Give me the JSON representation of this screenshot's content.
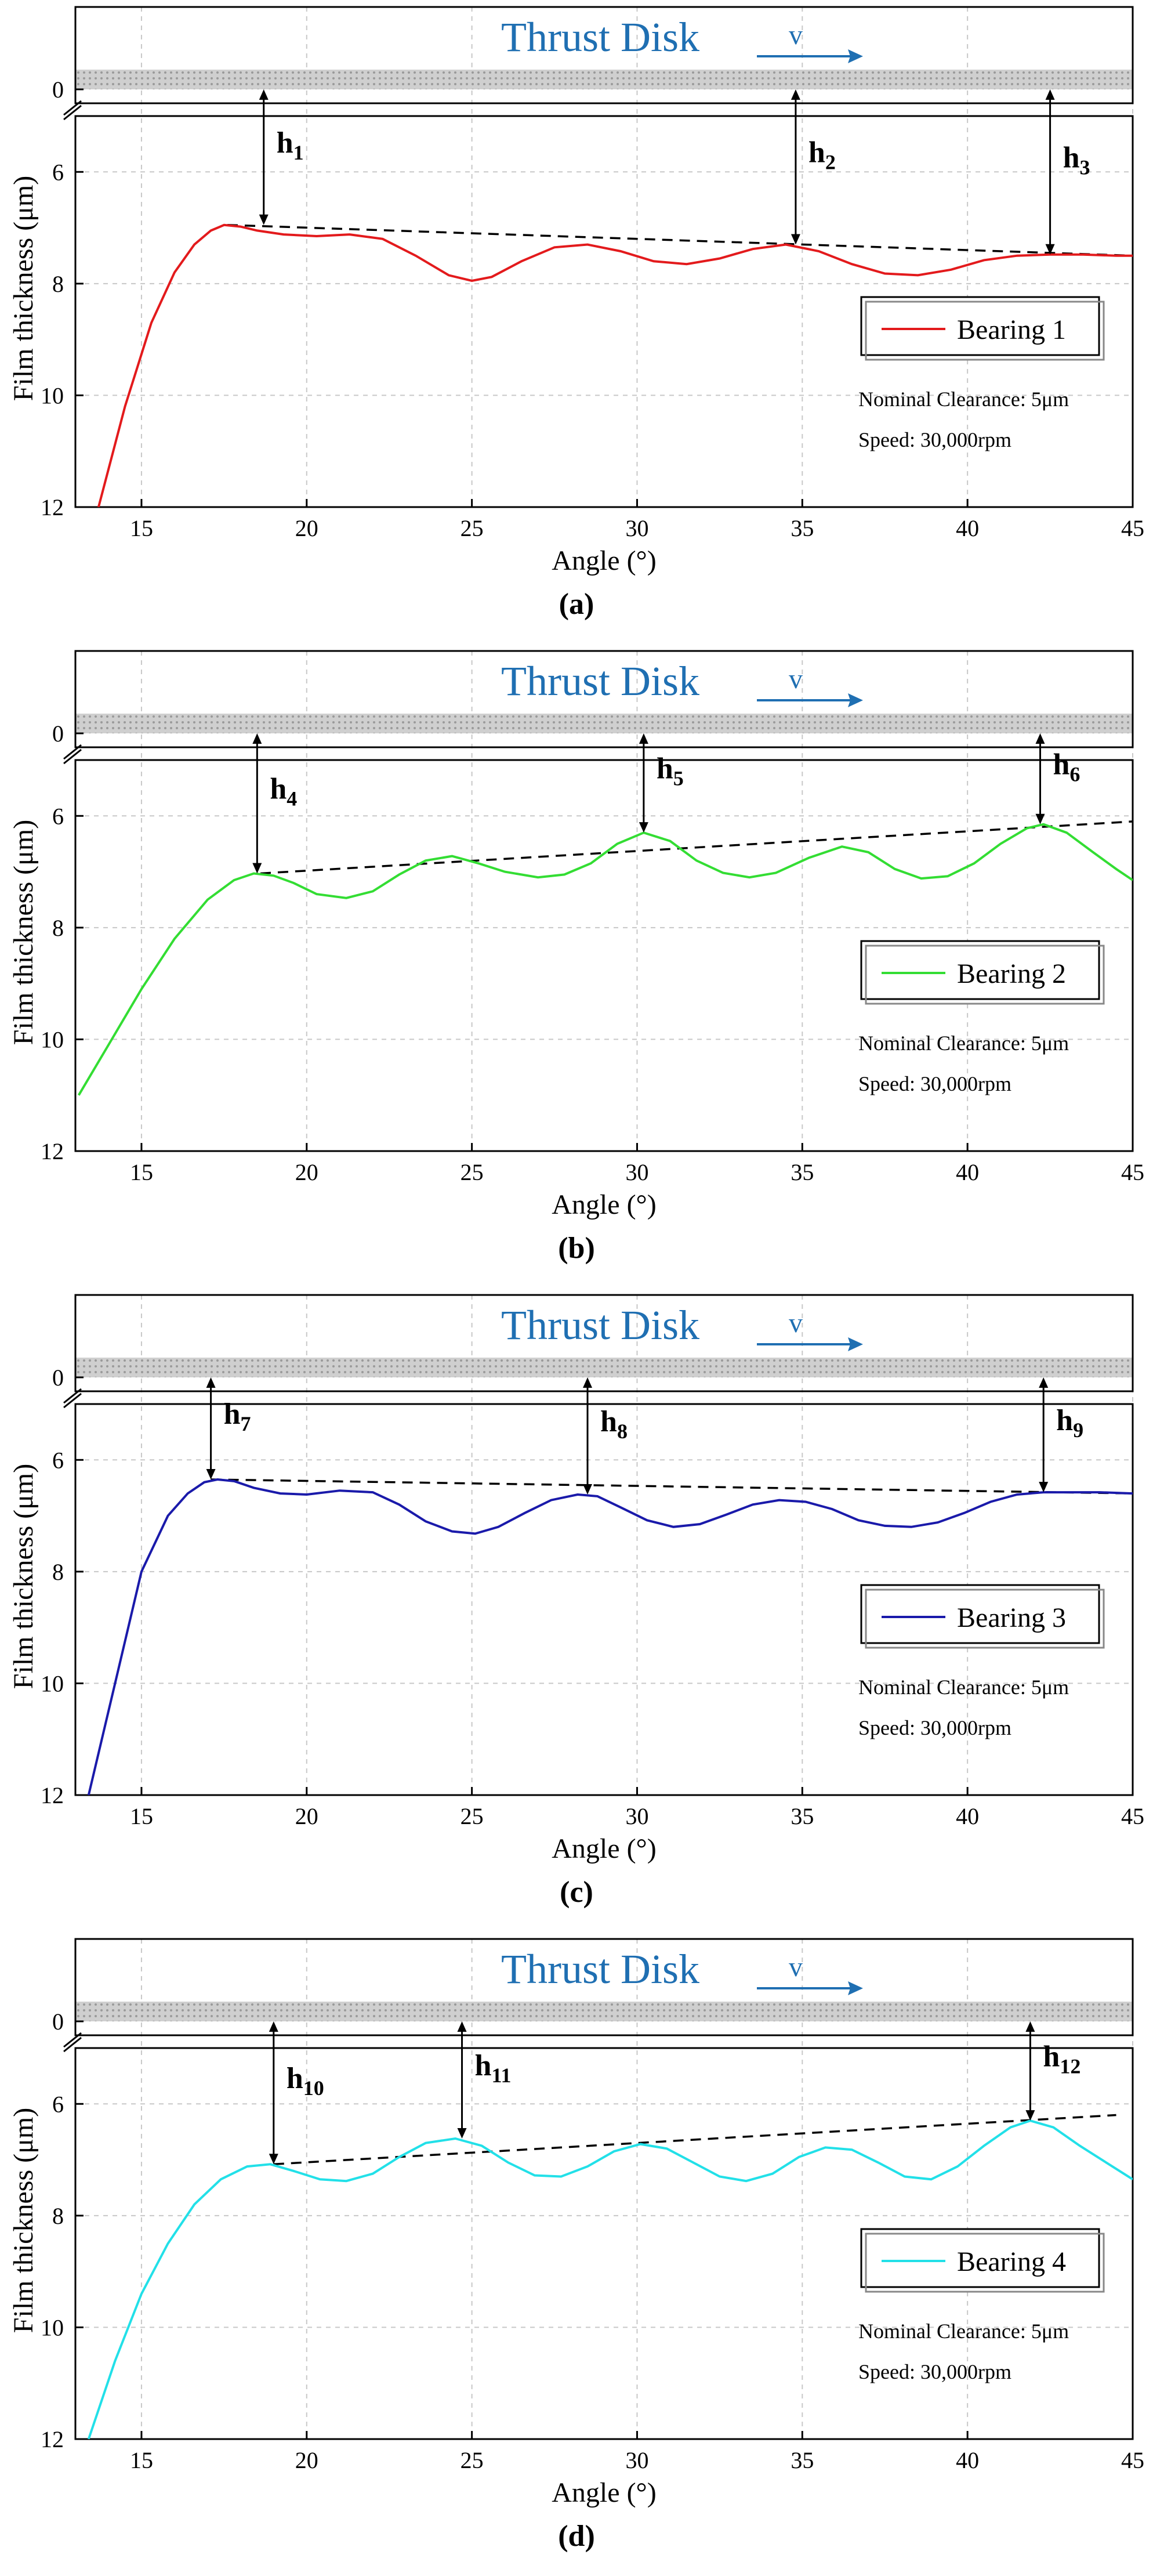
{
  "colors": {
    "bearing1": "#e31a1c",
    "bearing2": "#33dd33",
    "bearing3": "#1a1aaa",
    "bearing4": "#22e0e8",
    "disk_text": "#1f6fb2",
    "dashed": "#000000"
  },
  "chart_data": [
    {
      "type": "line",
      "caption": "(a)",
      "thrust_disk_label": "Thrust Disk",
      "velocity_label": "v",
      "xlabel": "Angle (°)",
      "ylabel": "Film thickness (μm)",
      "xlim": [
        13,
        45
      ],
      "ylim": [
        12,
        0
      ],
      "xticks": [
        "15",
        "20",
        "25",
        "30",
        "35",
        "40",
        "45"
      ],
      "yticks": [
        "0",
        "6",
        "8",
        "10",
        "12"
      ],
      "series": [
        {
          "name": "Bearing 1",
          "color": "#e31a1c",
          "x": [
            13.7,
            14.5,
            15.3,
            16.0,
            16.6,
            17.1,
            17.5,
            18.0,
            18.5,
            19.3,
            20.3,
            21.3,
            22.3,
            23.3,
            24.3,
            25.0,
            25.6,
            26.5,
            27.5,
            28.5,
            29.5,
            30.5,
            31.5,
            32.5,
            33.5,
            34.5,
            35.5,
            36.5,
            37.5,
            38.5,
            39.5,
            40.5,
            41.5,
            42.5,
            43.5,
            44.5,
            45.0
          ],
          "y": [
            12.0,
            10.2,
            8.7,
            7.8,
            7.3,
            7.05,
            6.95,
            6.98,
            7.05,
            7.12,
            7.15,
            7.12,
            7.2,
            7.5,
            7.85,
            7.95,
            7.88,
            7.6,
            7.35,
            7.3,
            7.42,
            7.6,
            7.65,
            7.55,
            7.38,
            7.3,
            7.42,
            7.65,
            7.82,
            7.85,
            7.75,
            7.58,
            7.5,
            7.48,
            7.48,
            7.5,
            7.5
          ]
        }
      ],
      "envelope": {
        "x": [
          17.6,
          45.0
        ],
        "y": [
          6.95,
          7.5
        ]
      },
      "clearance_markers": [
        {
          "label": "h",
          "sub": "1",
          "x": 18.7,
          "y": 6.95
        },
        {
          "label": "h",
          "sub": "2",
          "x": 34.8,
          "y": 7.3
        },
        {
          "label": "h",
          "sub": "3",
          "x": 42.5,
          "y": 7.48
        }
      ],
      "legend": "Bearing 1",
      "notes": [
        "Nominal Clearance: 5μm",
        "Speed: 30,000rpm"
      ]
    },
    {
      "type": "line",
      "caption": "(b)",
      "thrust_disk_label": "Thrust Disk",
      "velocity_label": "v",
      "xlabel": "Angle (°)",
      "ylabel": "Film thickness (μm)",
      "xlim": [
        13,
        45
      ],
      "ylim": [
        12,
        0
      ],
      "xticks": [
        "15",
        "20",
        "25",
        "30",
        "35",
        "40",
        "45"
      ],
      "yticks": [
        "0",
        "6",
        "8",
        "10",
        "12"
      ],
      "series": [
        {
          "name": "Bearing 2",
          "color": "#33dd33",
          "x": [
            13.1,
            14.0,
            15.0,
            16.0,
            17.0,
            17.8,
            18.4,
            19.0,
            19.6,
            20.3,
            21.2,
            22.0,
            22.8,
            23.6,
            24.4,
            25.2,
            26.0,
            27.0,
            27.8,
            28.6,
            29.4,
            30.2,
            31.0,
            31.8,
            32.6,
            33.4,
            34.2,
            35.2,
            36.2,
            37.0,
            37.8,
            38.6,
            39.4,
            40.2,
            41.0,
            41.8,
            42.3,
            43.0,
            43.8,
            44.5,
            45.0
          ],
          "y": [
            11.0,
            10.1,
            9.1,
            8.2,
            7.5,
            7.15,
            7.03,
            7.07,
            7.2,
            7.4,
            7.47,
            7.35,
            7.05,
            6.8,
            6.72,
            6.85,
            7.0,
            7.1,
            7.05,
            6.85,
            6.5,
            6.3,
            6.45,
            6.8,
            7.02,
            7.1,
            7.02,
            6.75,
            6.55,
            6.65,
            6.95,
            7.12,
            7.08,
            6.85,
            6.5,
            6.22,
            6.15,
            6.3,
            6.65,
            6.95,
            7.15
          ]
        }
      ],
      "envelope": {
        "x": [
          18.6,
          45.0
        ],
        "y": [
          7.03,
          6.1
        ]
      },
      "clearance_markers": [
        {
          "label": "h",
          "sub": "4",
          "x": 18.5,
          "y": 7.03
        },
        {
          "label": "h",
          "sub": "5",
          "x": 30.2,
          "y": 6.3
        },
        {
          "label": "h",
          "sub": "6",
          "x": 42.2,
          "y": 6.15
        }
      ],
      "legend": "Bearing 2",
      "notes": [
        "Nominal Clearance: 5μm",
        "Speed: 30,000rpm"
      ]
    },
    {
      "type": "line",
      "caption": "(c)",
      "thrust_disk_label": "Thrust Disk",
      "velocity_label": "v",
      "xlabel": "Angle (°)",
      "ylabel": "Film thickness (μm)",
      "xlim": [
        13,
        45
      ],
      "ylim": [
        12,
        0
      ],
      "xticks": [
        "15",
        "20",
        "25",
        "30",
        "35",
        "40",
        "45"
      ],
      "yticks": [
        "0",
        "6",
        "8",
        "10",
        "12"
      ],
      "series": [
        {
          "name": "Bearing 3",
          "color": "#1a1aaa",
          "x": [
            13.4,
            14.2,
            15.0,
            15.8,
            16.4,
            16.9,
            17.3,
            17.8,
            18.4,
            19.2,
            20.0,
            21.0,
            22.0,
            22.8,
            23.6,
            24.4,
            25.1,
            25.8,
            26.6,
            27.4,
            28.2,
            28.8,
            29.5,
            30.3,
            31.1,
            31.9,
            32.7,
            33.5,
            34.3,
            35.1,
            35.9,
            36.7,
            37.5,
            38.3,
            39.1,
            39.9,
            40.7,
            41.5,
            42.3,
            43.1,
            44.0,
            45.0
          ],
          "y": [
            12.0,
            10.0,
            8.0,
            7.0,
            6.6,
            6.4,
            6.35,
            6.38,
            6.5,
            6.6,
            6.62,
            6.55,
            6.58,
            6.8,
            7.1,
            7.28,
            7.32,
            7.2,
            6.95,
            6.72,
            6.62,
            6.65,
            6.85,
            7.08,
            7.2,
            7.15,
            6.98,
            6.8,
            6.72,
            6.75,
            6.88,
            7.08,
            7.18,
            7.2,
            7.12,
            6.95,
            6.75,
            6.62,
            6.58,
            6.58,
            6.58,
            6.6
          ]
        }
      ],
      "envelope": {
        "x": [
          17.1,
          45.0
        ],
        "y": [
          6.35,
          6.6
        ]
      },
      "clearance_markers": [
        {
          "label": "h",
          "sub": "7",
          "x": 17.1,
          "y": 6.35
        },
        {
          "label": "h",
          "sub": "8",
          "x": 28.5,
          "y": 6.62
        },
        {
          "label": "h",
          "sub": "9",
          "x": 42.3,
          "y": 6.58
        }
      ],
      "legend": "Bearing 3",
      "notes": [
        "Nominal Clearance: 5μm",
        "Speed: 30,000rpm"
      ]
    },
    {
      "type": "line",
      "caption": "(d)",
      "thrust_disk_label": "Thrust Disk",
      "velocity_label": "v",
      "xlabel": "Angle (°)",
      "ylabel": "Film thickness (μm)",
      "xlim": [
        13,
        45
      ],
      "ylim": [
        12,
        0
      ],
      "xticks": [
        "15",
        "20",
        "25",
        "30",
        "35",
        "40",
        "45"
      ],
      "yticks": [
        "0",
        "6",
        "8",
        "10",
        "12"
      ],
      "series": [
        {
          "name": "Bearing 4",
          "color": "#22e0e8",
          "x": [
            13.4,
            14.2,
            15.0,
            15.8,
            16.6,
            17.4,
            18.2,
            18.9,
            19.6,
            20.4,
            21.2,
            22.0,
            22.8,
            23.6,
            24.5,
            25.3,
            26.1,
            26.9,
            27.7,
            28.5,
            29.3,
            30.1,
            30.9,
            31.7,
            32.5,
            33.3,
            34.1,
            34.9,
            35.7,
            36.5,
            37.3,
            38.1,
            38.9,
            39.7,
            40.5,
            41.3,
            41.9,
            42.6,
            43.4,
            44.2,
            45.0
          ],
          "y": [
            12.0,
            10.6,
            9.4,
            8.5,
            7.8,
            7.35,
            7.12,
            7.08,
            7.2,
            7.35,
            7.38,
            7.25,
            6.95,
            6.7,
            6.62,
            6.75,
            7.05,
            7.28,
            7.3,
            7.12,
            6.85,
            6.72,
            6.8,
            7.05,
            7.3,
            7.38,
            7.25,
            6.95,
            6.78,
            6.82,
            7.05,
            7.3,
            7.35,
            7.12,
            6.75,
            6.42,
            6.3,
            6.42,
            6.75,
            7.05,
            7.35
          ]
        }
      ],
      "envelope": {
        "x": [
          19.0,
          44.5
        ],
        "y": [
          7.08,
          6.2
        ]
      },
      "clearance_markers": [
        {
          "label": "h",
          "sub": "10",
          "x": 19.0,
          "y": 7.08
        },
        {
          "label": "h",
          "sub": "11",
          "x": 24.7,
          "y": 6.62
        },
        {
          "label": "h",
          "sub": "12",
          "x": 41.9,
          "y": 6.3
        }
      ],
      "legend": "Bearing 4",
      "notes": [
        "Nominal Clearance: 5μm",
        "Speed: 30,000rpm"
      ]
    }
  ]
}
